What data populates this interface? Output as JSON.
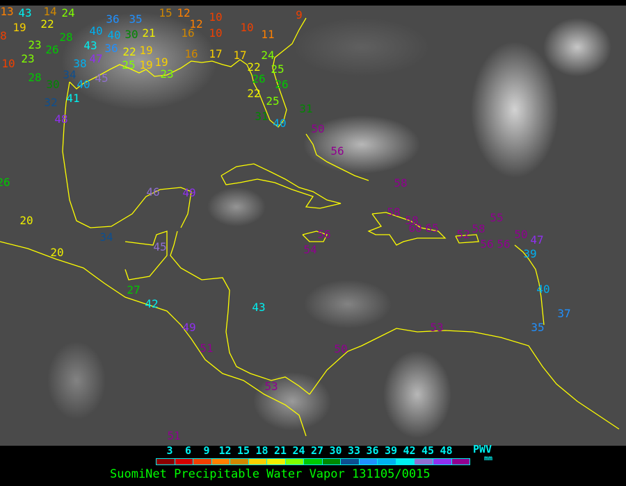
{
  "title": "SuomiNet Precipitable Water Vapor 131105/0015",
  "legend": {
    "unit_label": "PWV",
    "unit": "mm",
    "ticks": [
      "3",
      "6",
      "9",
      "12",
      "15",
      "18",
      "21",
      "24",
      "27",
      "30",
      "33",
      "36",
      "39",
      "42",
      "45",
      "48"
    ],
    "colors": [
      "#8b0000",
      "#d40000",
      "#f04000",
      "#ff8000",
      "#d08800",
      "#f8d000",
      "#f0f000",
      "#80ff00",
      "#00c800",
      "#008800",
      "#0d4f90",
      "#2090ff",
      "#00b0f0",
      "#00f0f0",
      "#9070d0",
      "#9030f0",
      "#900090"
    ]
  },
  "coastline_color": "#ffff00",
  "stations": [
    "13",
    "43",
    "14",
    "24",
    "19",
    "22",
    "8",
    "28",
    "23",
    "26",
    "10",
    "23",
    "28",
    "30",
    "34",
    "32",
    "41",
    "40",
    "45",
    "38",
    "47",
    "43",
    "36",
    "40",
    "40",
    "36",
    "35",
    "30",
    "21",
    "19",
    "22",
    "19",
    "25",
    "19",
    "23",
    "15",
    "12",
    "16",
    "12",
    "10",
    "10",
    "10",
    "11",
    "17",
    "16",
    "17",
    "22",
    "24",
    "25",
    "26",
    "26",
    "22",
    "25",
    "31",
    "31",
    "40",
    "9",
    "26",
    "20",
    "20",
    "48",
    "34",
    "46",
    "49",
    "45",
    "27",
    "42",
    "49",
    "51",
    "43",
    "53",
    "51",
    "50",
    "50",
    "56",
    "58",
    "58",
    "58",
    "60",
    "65",
    "52",
    "58",
    "55",
    "56",
    "56",
    "50",
    "47",
    "39",
    "40",
    "37",
    "35",
    "56",
    "54",
    "53"
  ]
}
